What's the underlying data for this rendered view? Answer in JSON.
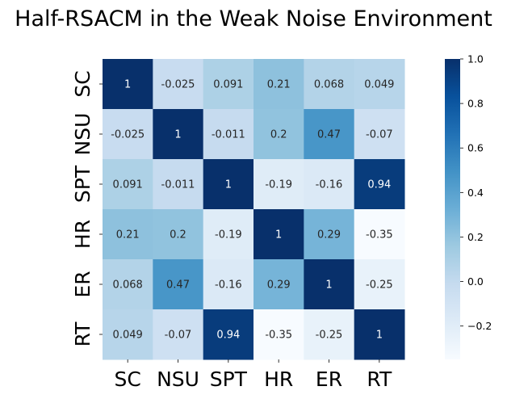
{
  "chart_data": {
    "type": "heatmap",
    "title": "Half-RSACM in the Weak Noise Environment",
    "x_labels": [
      "SC",
      "NSU",
      "SPT",
      "HR",
      "ER",
      "RT"
    ],
    "y_labels": [
      "SC",
      "NSU",
      "SPT",
      "HR",
      "ER",
      "RT"
    ],
    "values": [
      [
        1,
        -0.025,
        0.091,
        0.21,
        0.068,
        0.049
      ],
      [
        -0.025,
        1,
        -0.011,
        0.2,
        0.47,
        -0.07
      ],
      [
        0.091,
        -0.011,
        1,
        -0.19,
        -0.16,
        0.94
      ],
      [
        0.21,
        0.2,
        -0.19,
        1,
        0.29,
        -0.35
      ],
      [
        0.068,
        0.47,
        -0.16,
        0.29,
        1,
        -0.25
      ],
      [
        0.049,
        -0.07,
        0.94,
        -0.35,
        -0.25,
        1
      ]
    ],
    "cell_labels": [
      [
        "1",
        "-0.025",
        "0.091",
        "0.21",
        "0.068",
        "0.049"
      ],
      [
        "-0.025",
        "1",
        "-0.011",
        "0.2",
        "0.47",
        "-0.07"
      ],
      [
        "0.091",
        "-0.011",
        "1",
        "-0.19",
        "-0.16",
        "0.94"
      ],
      [
        "0.21",
        "0.2",
        "-0.19",
        "1",
        "0.29",
        "-0.35"
      ],
      [
        "0.068",
        "0.47",
        "-0.16",
        "0.29",
        "1",
        "-0.25"
      ],
      [
        "0.049",
        "-0.07",
        "0.94",
        "-0.35",
        "-0.25",
        "1"
      ]
    ],
    "colormap": "Blues",
    "vmin": -0.35,
    "vmax": 1.0,
    "colorbar": {
      "ticks": [
        1.0,
        0.8,
        0.6,
        0.4,
        0.2,
        0.0,
        -0.2
      ],
      "tick_labels": [
        "1.0",
        "0.8",
        "0.6",
        "0.4",
        "0.2",
        "0.0",
        "−0.2"
      ],
      "position": "right"
    },
    "grid": false
  }
}
